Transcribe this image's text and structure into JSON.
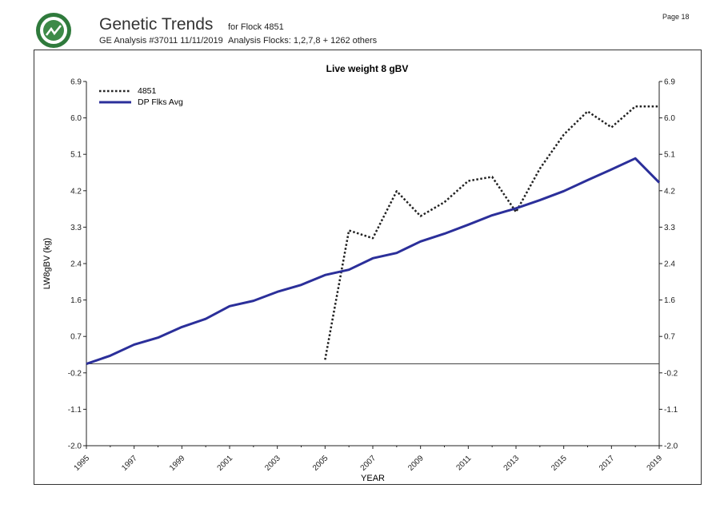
{
  "header": {
    "title": "Genetic Trends",
    "analysis": "GE Analysis #37011 11/11/2019",
    "flock": "for Flock 4851",
    "analysis_flocks": "Analysis Flocks: 1,2,7,8 + 1262 others",
    "page": "Page 18",
    "logo_icon": "sil-logo"
  },
  "chart_data": {
    "type": "line",
    "title": "Live weight 8 gBV",
    "xlabel": "YEAR",
    "ylabel": "LW8gBV (kg)",
    "ylim": [
      -2.0,
      6.9
    ],
    "xlim": [
      1995,
      2019
    ],
    "yticks": [
      "6.9",
      "6.0",
      "5.1",
      "4.2",
      "3.3",
      "2.4",
      "1.6",
      "0.7",
      "-0.2",
      "-1.1",
      "-2.0"
    ],
    "xticks": [
      "1995",
      "1997",
      "1999",
      "2001",
      "2003",
      "2005",
      "2007",
      "2009",
      "2011",
      "2013",
      "2015",
      "2017",
      "2019"
    ],
    "grid": false,
    "legend_placement": "top-left",
    "series": [
      {
        "name": "4851",
        "style": "dotted",
        "color": "#222222",
        "x": [
          2005,
          2006,
          2007,
          2008,
          2009,
          2010,
          2011,
          2012,
          2013,
          2014,
          2015,
          2016,
          2017,
          2018,
          2019
        ],
        "y": [
          0.1,
          3.26,
          3.07,
          4.22,
          3.61,
          3.95,
          4.47,
          4.57,
          3.71,
          4.77,
          5.6,
          6.17,
          5.78,
          6.29,
          6.29
        ]
      },
      {
        "name": "DP Flks Avg",
        "style": "solid",
        "color": "#2b2f9a",
        "x": [
          1995,
          1996,
          1997,
          1998,
          1999,
          2000,
          2001,
          2002,
          2003,
          2004,
          2005,
          2006,
          2007,
          2008,
          2009,
          2010,
          2011,
          2012,
          2013,
          2014,
          2015,
          2016,
          2017,
          2018,
          2019
        ],
        "y": [
          0.0,
          0.2,
          0.47,
          0.64,
          0.9,
          1.1,
          1.41,
          1.54,
          1.76,
          1.93,
          2.17,
          2.3,
          2.58,
          2.71,
          2.99,
          3.18,
          3.4,
          3.63,
          3.8,
          4.0,
          4.22,
          4.49,
          4.75,
          5.02,
          4.43
        ]
      }
    ]
  }
}
